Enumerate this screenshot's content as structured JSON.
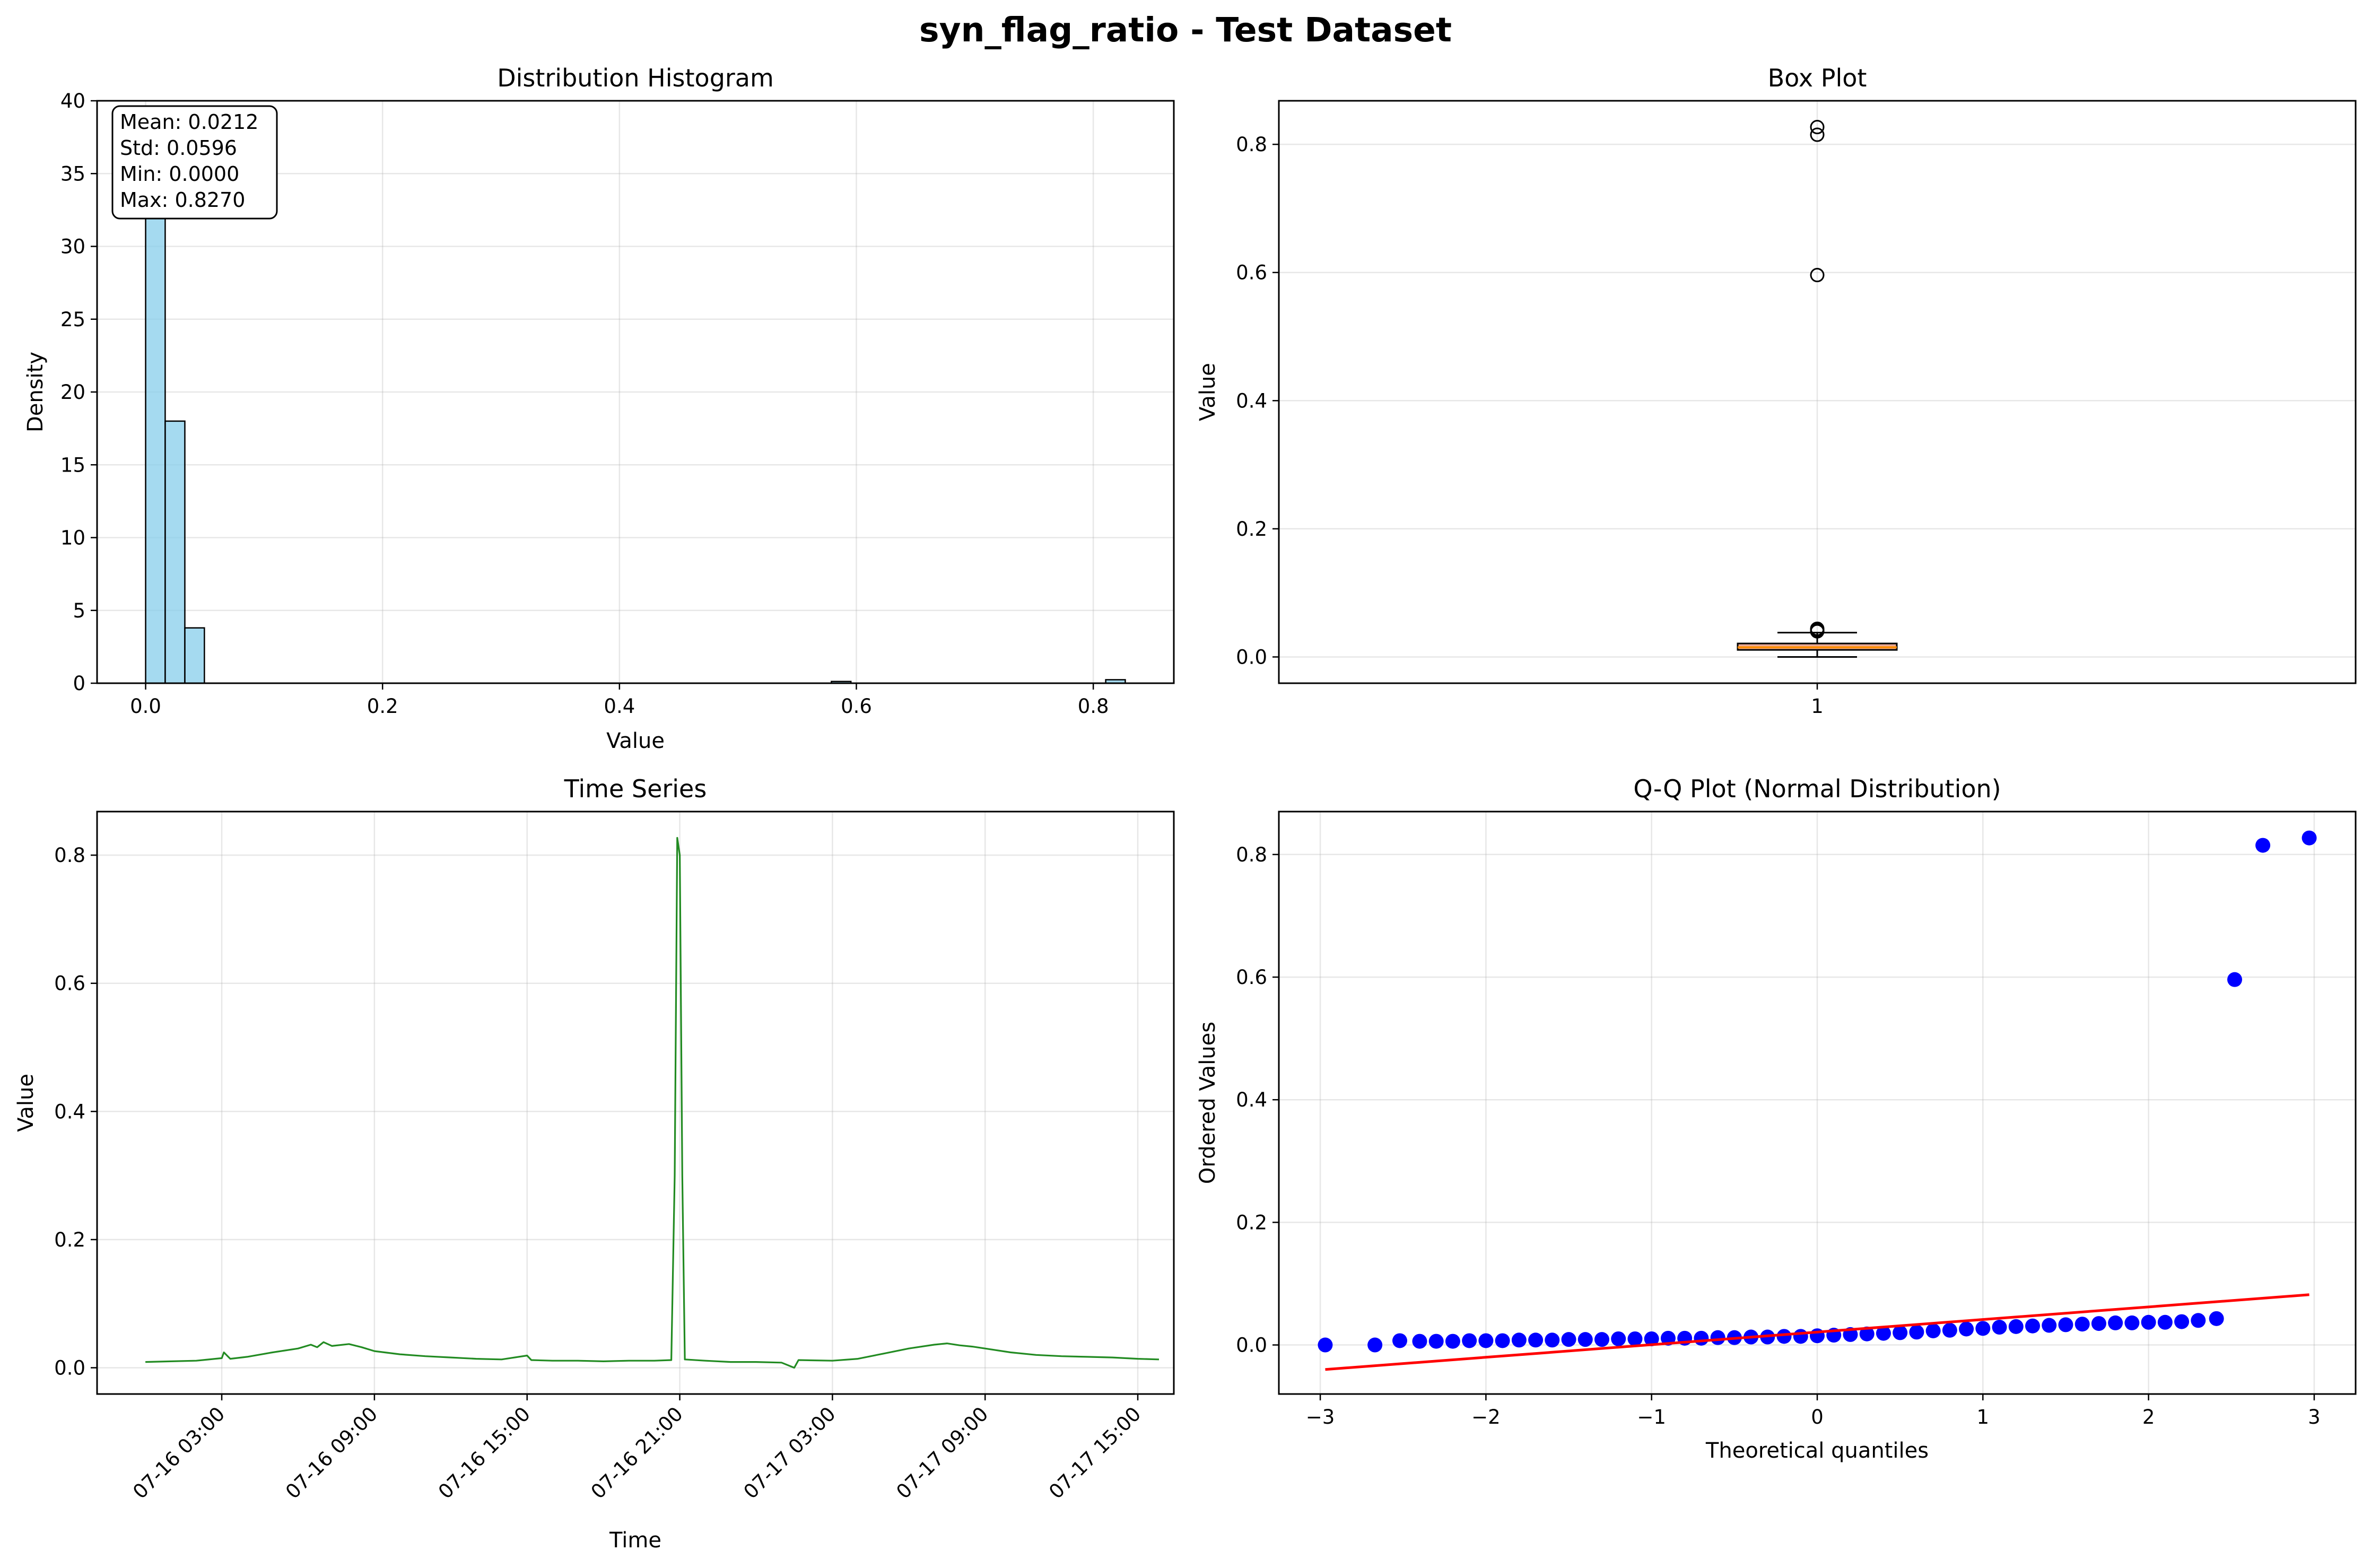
{
  "figure": {
    "title": "syn_flag_ratio - Test Dataset"
  },
  "chart_data": [
    {
      "type": "bar",
      "title": "Distribution Histogram",
      "xlabel": "Value",
      "ylabel": "Density",
      "xlim": [
        -0.041,
        0.868
      ],
      "ylim": [
        0,
        40
      ],
      "xticks": [
        "0.0",
        "0.2",
        "0.4",
        "0.6",
        "0.8"
      ],
      "yticks": [
        "0",
        "5",
        "10",
        "15",
        "20",
        "25",
        "30",
        "35",
        "40"
      ],
      "grid": true,
      "bar_color": "#87ceeb",
      "bins": [
        {
          "x0": 0.0,
          "x1": 0.0165,
          "density": 38.1
        },
        {
          "x0": 0.0165,
          "x1": 0.0331,
          "density": 18.0
        },
        {
          "x0": 0.0331,
          "x1": 0.0496,
          "density": 3.8
        },
        {
          "x0": 0.5789,
          "x1": 0.5954,
          "density": 0.12
        },
        {
          "x0": 0.8105,
          "x1": 0.827,
          "density": 0.24
        }
      ],
      "stats": [
        "Mean: 0.0212",
        "Std: 0.0596",
        "Min: 0.0000",
        "Max: 0.8270"
      ]
    },
    {
      "type": "box",
      "title": "Box Plot",
      "xlabel": "",
      "ylabel": "Value",
      "categories": [
        "1"
      ],
      "ylim": [
        -0.041,
        0.868
      ],
      "yticks": [
        "0.0",
        "0.2",
        "0.4",
        "0.6",
        "0.8"
      ],
      "grid": true,
      "box_color": "#e9967a",
      "median_color": "#ff8c00",
      "whisker_low": 0.0,
      "q1": 0.011,
      "median": 0.015,
      "q3": 0.021,
      "whisker_high": 0.038,
      "outliers": [
        0.04,
        0.042,
        0.044,
        0.596,
        0.815,
        0.827
      ]
    },
    {
      "type": "line",
      "title": "Time Series",
      "xlabel": "Time",
      "ylabel": "Value",
      "xlim": [
        "2024-07-15 22:06",
        "2024-07-17 16:25"
      ],
      "ylim": [
        -0.041,
        0.868
      ],
      "xticks": [
        "07-16 03:00",
        "07-16 09:00",
        "07-16 15:00",
        "07-16 21:00",
        "07-17 03:00",
        "07-17 09:00",
        "07-17 15:00"
      ],
      "yticks": [
        "0.0",
        "0.2",
        "0.4",
        "0.6",
        "0.8"
      ],
      "grid": true,
      "line_color": "#228b22",
      "points": [
        [
          "2024-07-16 00:00",
          0.009
        ],
        [
          "2024-07-16 01:00",
          0.01
        ],
        [
          "2024-07-16 02:00",
          0.011
        ],
        [
          "2024-07-16 03:00",
          0.015
        ],
        [
          "2024-07-16 03:05",
          0.024
        ],
        [
          "2024-07-16 03:20",
          0.014
        ],
        [
          "2024-07-16 04:00",
          0.017
        ],
        [
          "2024-07-16 05:00",
          0.024
        ],
        [
          "2024-07-16 06:00",
          0.03
        ],
        [
          "2024-07-16 06:30",
          0.036
        ],
        [
          "2024-07-16 06:45",
          0.032
        ],
        [
          "2024-07-16 07:00",
          0.04
        ],
        [
          "2024-07-16 07:20",
          0.034
        ],
        [
          "2024-07-16 08:00",
          0.037
        ],
        [
          "2024-07-16 08:30",
          0.032
        ],
        [
          "2024-07-16 09:00",
          0.026
        ],
        [
          "2024-07-16 10:00",
          0.021
        ],
        [
          "2024-07-16 11:00",
          0.018
        ],
        [
          "2024-07-16 12:00",
          0.016
        ],
        [
          "2024-07-16 13:00",
          0.014
        ],
        [
          "2024-07-16 14:00",
          0.013
        ],
        [
          "2024-07-16 15:00",
          0.019
        ],
        [
          "2024-07-16 15:10",
          0.012
        ],
        [
          "2024-07-16 16:00",
          0.011
        ],
        [
          "2024-07-16 17:00",
          0.011
        ],
        [
          "2024-07-16 18:00",
          0.01
        ],
        [
          "2024-07-16 19:00",
          0.011
        ],
        [
          "2024-07-16 20:00",
          0.011
        ],
        [
          "2024-07-16 20:40",
          0.012
        ],
        [
          "2024-07-16 20:48",
          0.3
        ],
        [
          "2024-07-16 20:54",
          0.827
        ],
        [
          "2024-07-16 21:00",
          0.8
        ],
        [
          "2024-07-16 21:06",
          0.3
        ],
        [
          "2024-07-16 21:12",
          0.013
        ],
        [
          "2024-07-16 22:00",
          0.011
        ],
        [
          "2024-07-16 23:00",
          0.009
        ],
        [
          "2024-07-17 00:00",
          0.009
        ],
        [
          "2024-07-17 01:00",
          0.008
        ],
        [
          "2024-07-17 01:30",
          0.0
        ],
        [
          "2024-07-17 01:40",
          0.012
        ],
        [
          "2024-07-17 03:00",
          0.011
        ],
        [
          "2024-07-17 04:00",
          0.014
        ],
        [
          "2024-07-17 05:00",
          0.022
        ],
        [
          "2024-07-17 06:00",
          0.03
        ],
        [
          "2024-07-17 07:00",
          0.036
        ],
        [
          "2024-07-17 07:30",
          0.038
        ],
        [
          "2024-07-17 08:00",
          0.035
        ],
        [
          "2024-07-17 08:30",
          0.033
        ],
        [
          "2024-07-17 09:00",
          0.03
        ],
        [
          "2024-07-17 10:00",
          0.024
        ],
        [
          "2024-07-17 11:00",
          0.02
        ],
        [
          "2024-07-17 12:00",
          0.018
        ],
        [
          "2024-07-17 13:00",
          0.017
        ],
        [
          "2024-07-17 14:00",
          0.016
        ],
        [
          "2024-07-17 15:00",
          0.014
        ],
        [
          "2024-07-17 15:50",
          0.013
        ]
      ]
    },
    {
      "type": "scatter",
      "title": "Q-Q Plot (Normal Distribution)",
      "xlabel": "Theoretical quantiles",
      "ylabel": "Ordered Values",
      "xlim": [
        -3.25,
        3.25
      ],
      "ylim": [
        -0.08,
        0.87
      ],
      "xticks": [
        "−3",
        "−2",
        "−1",
        "0",
        "1",
        "2",
        "3"
      ],
      "yticks": [
        "0.0",
        "0.2",
        "0.4",
        "0.6",
        "0.8"
      ],
      "grid": true,
      "point_color": "#0000ff",
      "fit_line_color": "#ff0000",
      "fit_line": [
        [
          -2.97,
          -0.04
        ],
        [
          2.97,
          0.082
        ]
      ],
      "points": [
        [
          -2.97,
          0.0
        ],
        [
          -2.67,
          0.0
        ],
        [
          -2.52,
          0.007
        ],
        [
          -2.4,
          0.006
        ],
        [
          -2.3,
          0.006
        ],
        [
          -2.2,
          0.006
        ],
        [
          -2.1,
          0.007
        ],
        [
          -2.0,
          0.007
        ],
        [
          -1.9,
          0.007
        ],
        [
          -1.8,
          0.008
        ],
        [
          -1.7,
          0.008
        ],
        [
          -1.6,
          0.008
        ],
        [
          -1.5,
          0.009
        ],
        [
          -1.4,
          0.009
        ],
        [
          -1.3,
          0.009
        ],
        [
          -1.2,
          0.01
        ],
        [
          -1.1,
          0.01
        ],
        [
          -1.0,
          0.01
        ],
        [
          -0.9,
          0.011
        ],
        [
          -0.8,
          0.011
        ],
        [
          -0.7,
          0.011
        ],
        [
          -0.6,
          0.012
        ],
        [
          -0.5,
          0.012
        ],
        [
          -0.4,
          0.013
        ],
        [
          -0.3,
          0.013
        ],
        [
          -0.2,
          0.014
        ],
        [
          -0.1,
          0.014
        ],
        [
          0.0,
          0.015
        ],
        [
          0.1,
          0.016
        ],
        [
          0.2,
          0.017
        ],
        [
          0.3,
          0.018
        ],
        [
          0.4,
          0.019
        ],
        [
          0.5,
          0.02
        ],
        [
          0.6,
          0.021
        ],
        [
          0.7,
          0.023
        ],
        [
          0.8,
          0.024
        ],
        [
          0.9,
          0.026
        ],
        [
          1.0,
          0.027
        ],
        [
          1.1,
          0.029
        ],
        [
          1.2,
          0.03
        ],
        [
          1.3,
          0.031
        ],
        [
          1.4,
          0.032
        ],
        [
          1.5,
          0.033
        ],
        [
          1.6,
          0.034
        ],
        [
          1.7,
          0.035
        ],
        [
          1.8,
          0.036
        ],
        [
          1.9,
          0.036
        ],
        [
          2.0,
          0.037
        ],
        [
          2.1,
          0.037
        ],
        [
          2.2,
          0.038
        ],
        [
          2.3,
          0.04
        ],
        [
          2.41,
          0.043
        ],
        [
          2.52,
          0.596
        ],
        [
          2.69,
          0.815
        ],
        [
          2.97,
          0.827
        ]
      ]
    }
  ]
}
